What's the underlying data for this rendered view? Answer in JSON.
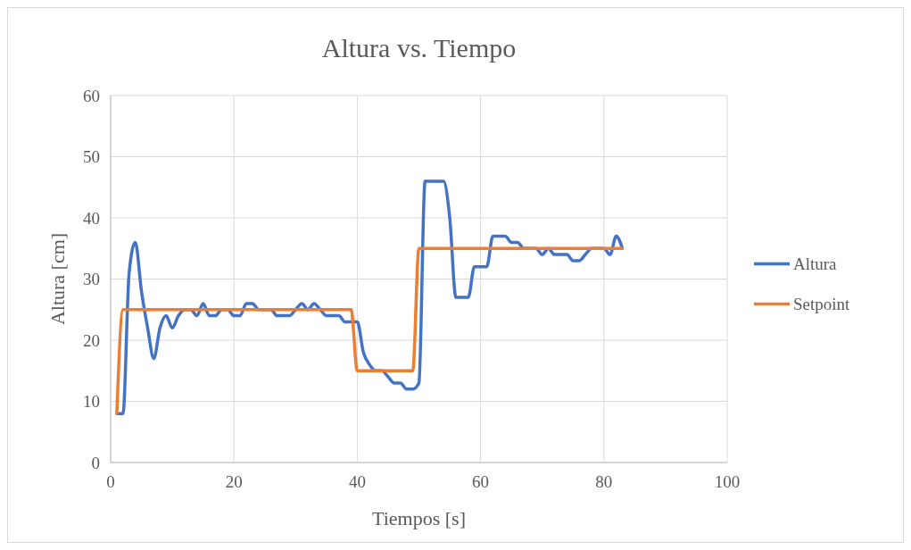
{
  "chart_data": {
    "type": "line",
    "title": "Altura vs. Tiempo",
    "xlabel": "Tiempos [s]",
    "ylabel": "Altura [cm]",
    "x": [
      1,
      2,
      3,
      4,
      5,
      6,
      7,
      8,
      9,
      10,
      11,
      12,
      13,
      14,
      15,
      16,
      17,
      18,
      19,
      20,
      21,
      22,
      23,
      24,
      25,
      26,
      27,
      28,
      29,
      30,
      31,
      32,
      33,
      34,
      35,
      36,
      37,
      38,
      39,
      40,
      41,
      42,
      43,
      44,
      45,
      46,
      47,
      48,
      49,
      50,
      51,
      52,
      53,
      54,
      55,
      56,
      57,
      58,
      59,
      60,
      61,
      62,
      63,
      64,
      65,
      66,
      67,
      68,
      69,
      70,
      71,
      72,
      73,
      74,
      75,
      76,
      77,
      78,
      79,
      80,
      81,
      82,
      83
    ],
    "series": [
      {
        "name": "Altura",
        "color": "#4472c4",
        "values": [
          8,
          8,
          31,
          36,
          28,
          22,
          17,
          22,
          24,
          22,
          24,
          25,
          25,
          24,
          26,
          24,
          24,
          25,
          25,
          24,
          24,
          26,
          26,
          25,
          25,
          25,
          24,
          24,
          24,
          25,
          26,
          25,
          26,
          25,
          24,
          24,
          24,
          23,
          23,
          23,
          18,
          16,
          15,
          15,
          14,
          13,
          13,
          12,
          12,
          13,
          46,
          46,
          46,
          46,
          40,
          27,
          27,
          27,
          32,
          32,
          32,
          37,
          37,
          37,
          36,
          36,
          35,
          35,
          35,
          34,
          35,
          34,
          34,
          34,
          33,
          33,
          34,
          35,
          35,
          35,
          34,
          37,
          35
        ]
      },
      {
        "name": "Setpoint",
        "color": "#ed7d31",
        "values": [
          8,
          25,
          25,
          25,
          25,
          25,
          25,
          25,
          25,
          25,
          25,
          25,
          25,
          25,
          25,
          25,
          25,
          25,
          25,
          25,
          25,
          25,
          25,
          25,
          25,
          25,
          25,
          25,
          25,
          25,
          25,
          25,
          25,
          25,
          25,
          25,
          25,
          25,
          25,
          15,
          15,
          15,
          15,
          15,
          15,
          15,
          15,
          15,
          15,
          35,
          35,
          35,
          35,
          35,
          35,
          35,
          35,
          35,
          35,
          35,
          35,
          35,
          35,
          35,
          35,
          35,
          35,
          35,
          35,
          35,
          35,
          35,
          35,
          35,
          35,
          35,
          35,
          35,
          35,
          35,
          35,
          35,
          35
        ]
      }
    ],
    "xlim": [
      0,
      100
    ],
    "xticks": [
      0,
      20,
      40,
      60,
      80,
      100
    ],
    "ylim": [
      0,
      60
    ],
    "yticks": [
      0,
      10,
      20,
      30,
      40,
      50,
      60
    ],
    "grid": true,
    "legend": "right",
    "marker": "none",
    "line_style": "solid"
  }
}
